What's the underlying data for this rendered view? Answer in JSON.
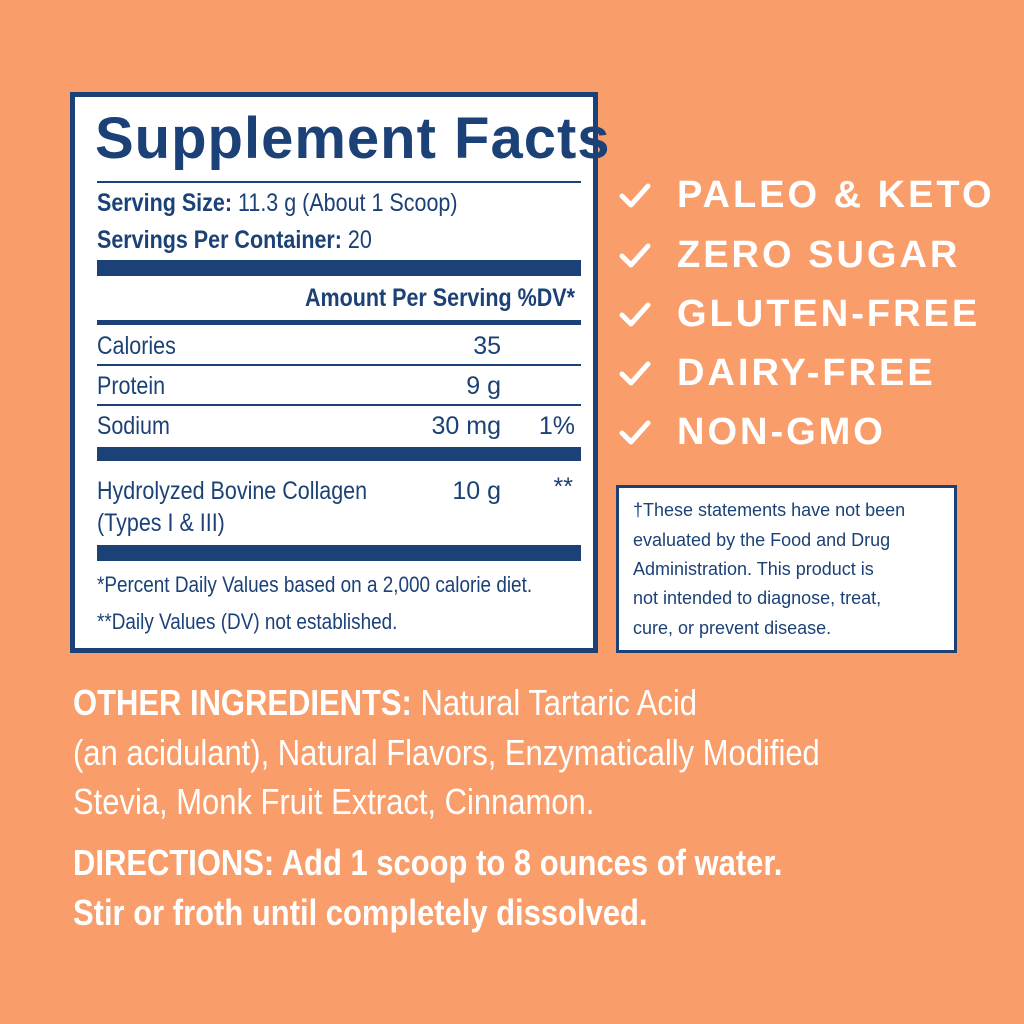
{
  "colors": {
    "background": "#F99D6B",
    "navy": "#1B4176",
    "text_light": "#FFFFFF"
  },
  "facts": {
    "title": "Supplement Facts",
    "serving_size_label": "Serving Size:",
    "serving_size_value": "11.3 g (About 1 Scoop)",
    "servings_label": "Servings Per Container:",
    "servings_value": "20",
    "amount_header": "Amount Per Serving",
    "dv_header": "%DV*",
    "rows": [
      {
        "name": "Calories",
        "amount": "35",
        "dv": ""
      },
      {
        "name": "Protein",
        "amount": "9 g",
        "dv": ""
      },
      {
        "name": "Sodium",
        "amount": "30 mg",
        "dv": "1%"
      }
    ],
    "collagen": {
      "name_line1": "Hydrolyzed Bovine Collagen",
      "name_line2": "(Types I & III)",
      "amount": "10 g",
      "dv": "**"
    },
    "footnote1": "*Percent Daily Values based on a 2,000 calorie diet.",
    "footnote2": "**Daily Values (DV) not established."
  },
  "claims": [
    {
      "icon": "check-icon",
      "label": "PALEO & KETO"
    },
    {
      "icon": "check-icon",
      "label": "ZERO SUGAR"
    },
    {
      "icon": "check-icon",
      "label": "GLUTEN-FREE"
    },
    {
      "icon": "check-icon",
      "label": "DAIRY-FREE"
    },
    {
      "icon": "check-icon",
      "label": "NON-GMO"
    }
  ],
  "disclaimer": [
    "†These statements have not been",
    "evaluated by the Food and Drug",
    "Administration. This product is",
    "not intended to diagnose, treat,",
    "cure, or prevent disease."
  ],
  "other_ingredients": {
    "label": "OTHER INGREDIENTS:",
    "line1": "Natural Tartaric Acid",
    "line2": "(an acidulant), Natural Flavors, Enzymatically Modified",
    "line3": "Stevia, Monk Fruit Extract, Cinnamon."
  },
  "directions": {
    "line1": "DIRECTIONS: Add 1 scoop to 8 ounces of water.",
    "line2": "Stir or froth until completely dissolved."
  }
}
